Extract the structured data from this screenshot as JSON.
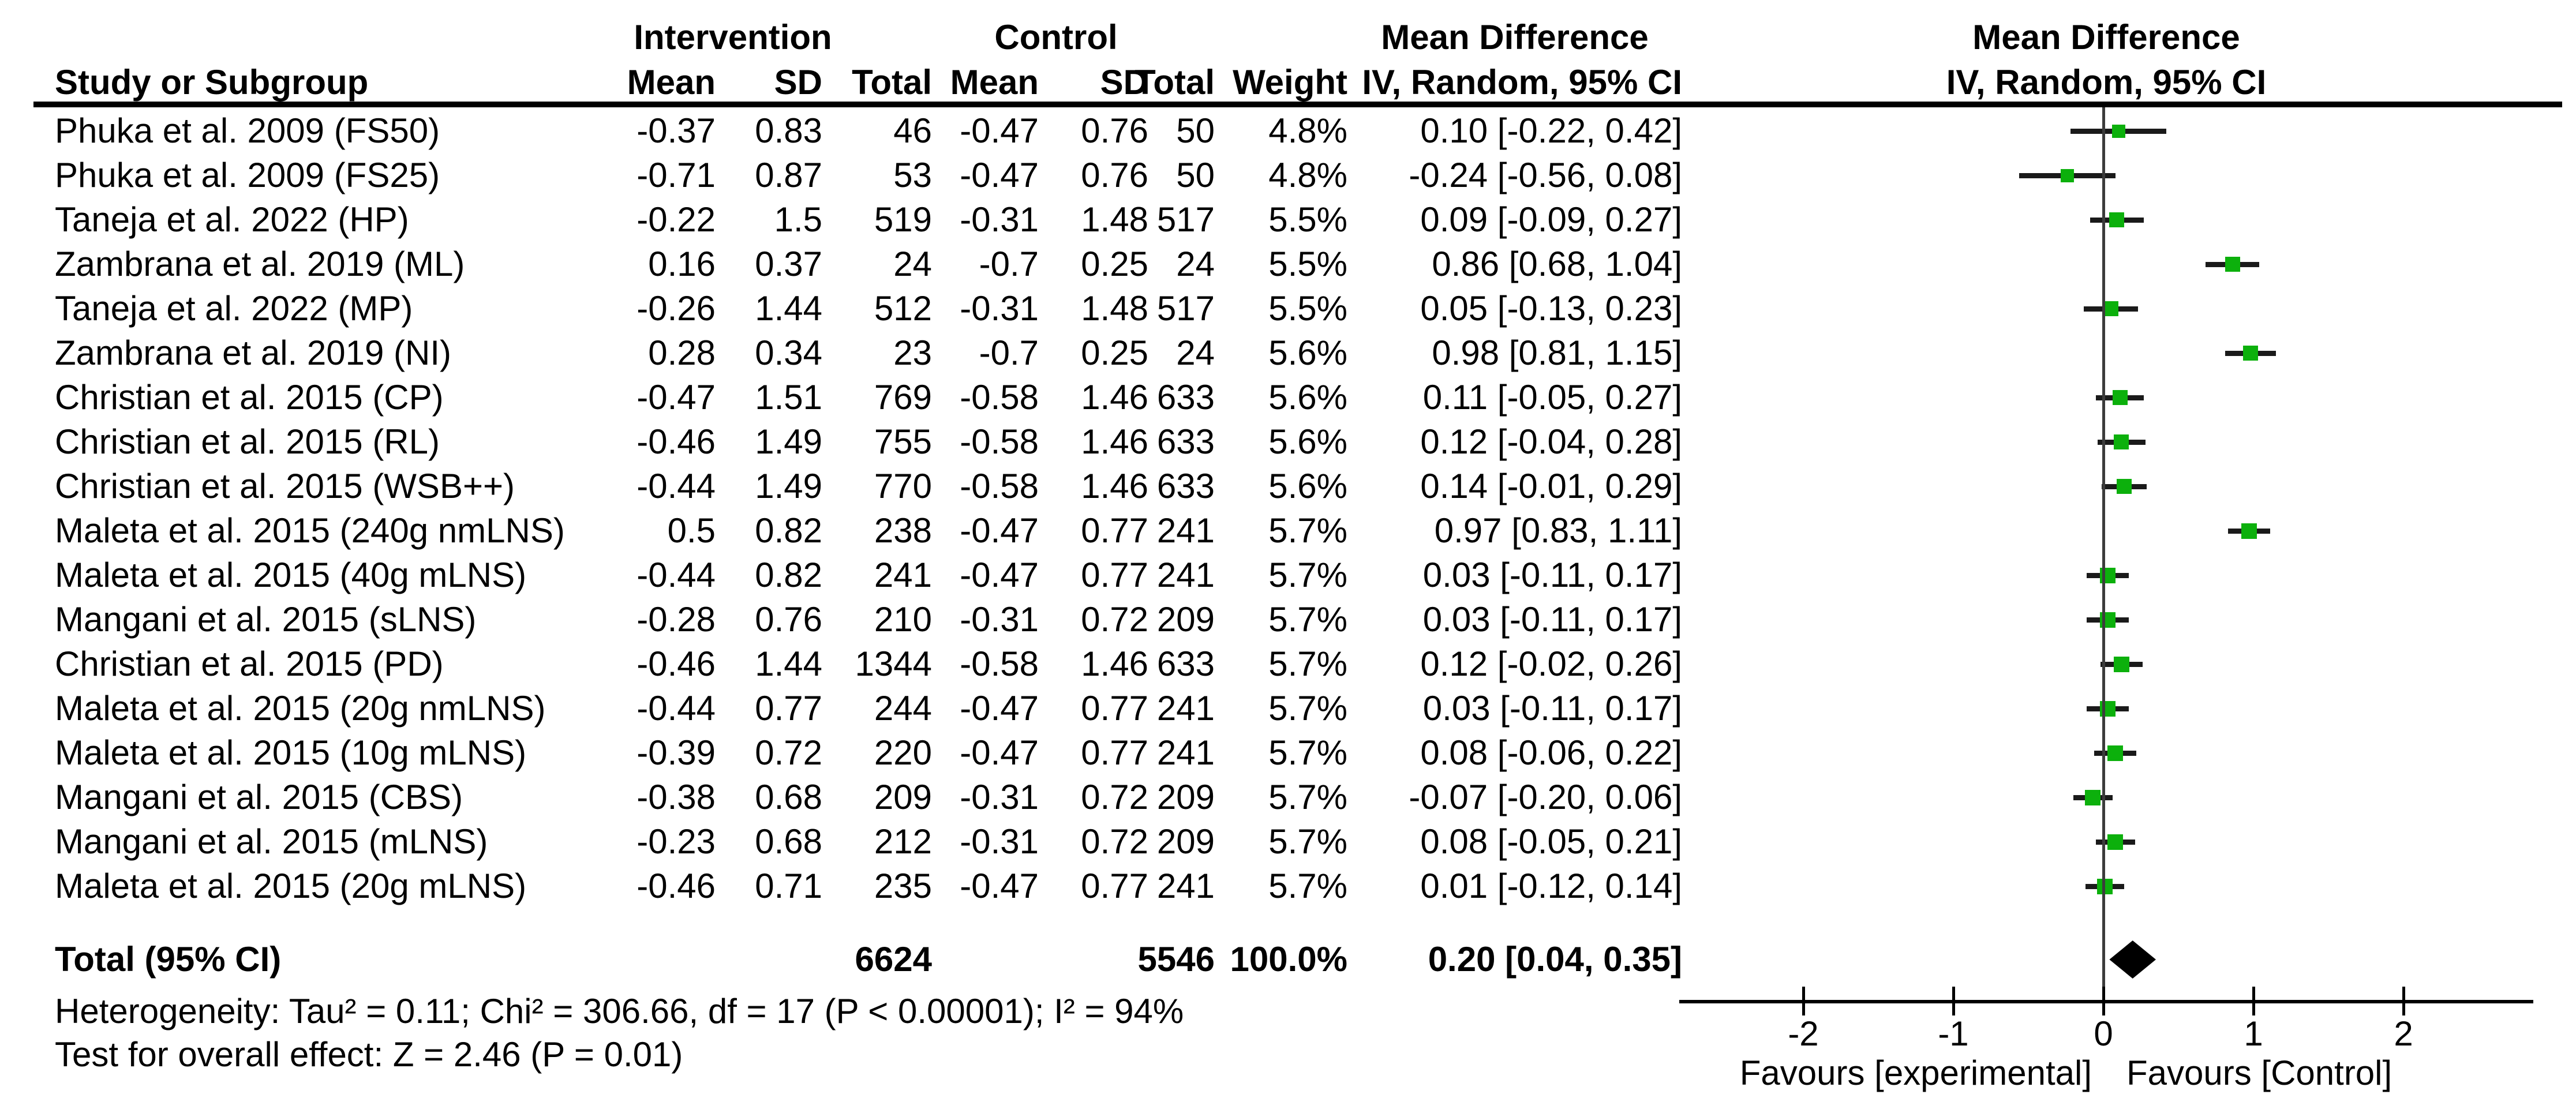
{
  "table": {
    "group_headers": {
      "intervention": "Intervention",
      "control": "Control",
      "mean_difference": "Mean Difference"
    },
    "column_headers": {
      "study": "Study or Subgroup",
      "mean1": "Mean",
      "sd1": "SD",
      "total1": "Total",
      "mean2": "Mean",
      "sd2": "SD",
      "total2": "Total",
      "weight": "Weight",
      "ci": "IV, Random, 95% CI"
    }
  },
  "plot_header": {
    "line1": "Mean Difference",
    "line2": "IV, Random, 95% CI"
  },
  "footer": {
    "heterogeneity": "Heterogeneity: Tau² = 0.11; Chi² = 306.66, df = 17 (P < 0.00001); I² = 94%",
    "overall_effect": "Test for overall effect: Z = 2.46 (P = 0.01)"
  },
  "chart_data": {
    "type": "scatter",
    "subtype": "forest-plot",
    "effect_measure": "Mean Difference IV, Random, 95% CI",
    "studies": [
      {
        "name": "Phuka et al. 2009 (FS50)",
        "i_mean": "-0.37",
        "i_sd": "0.83",
        "i_total": "46",
        "c_mean": "-0.47",
        "c_sd": "0.76",
        "c_total": "50",
        "weight": "4.8%",
        "ci_label": "0.10 [-0.22, 0.42]",
        "md": 0.1,
        "lo": -0.22,
        "hi": 0.42
      },
      {
        "name": "Phuka et al. 2009 (FS25)",
        "i_mean": "-0.71",
        "i_sd": "0.87",
        "i_total": "53",
        "c_mean": "-0.47",
        "c_sd": "0.76",
        "c_total": "50",
        "weight": "4.8%",
        "ci_label": "-0.24 [-0.56, 0.08]",
        "md": -0.24,
        "lo": -0.56,
        "hi": 0.08
      },
      {
        "name": "Taneja et al. 2022 (HP)",
        "i_mean": "-0.22",
        "i_sd": "1.5",
        "i_total": "519",
        "c_mean": "-0.31",
        "c_sd": "1.48",
        "c_total": "517",
        "weight": "5.5%",
        "ci_label": "0.09 [-0.09, 0.27]",
        "md": 0.09,
        "lo": -0.09,
        "hi": 0.27
      },
      {
        "name": "Zambrana et al. 2019 (ML)",
        "i_mean": "0.16",
        "i_sd": "0.37",
        "i_total": "24",
        "c_mean": "-0.7",
        "c_sd": "0.25",
        "c_total": "24",
        "weight": "5.5%",
        "ci_label": "0.86 [0.68, 1.04]",
        "md": 0.86,
        "lo": 0.68,
        "hi": 1.04
      },
      {
        "name": "Taneja et al. 2022 (MP)",
        "i_mean": "-0.26",
        "i_sd": "1.44",
        "i_total": "512",
        "c_mean": "-0.31",
        "c_sd": "1.48",
        "c_total": "517",
        "weight": "5.5%",
        "ci_label": "0.05 [-0.13, 0.23]",
        "md": 0.05,
        "lo": -0.13,
        "hi": 0.23
      },
      {
        "name": "Zambrana et al. 2019 (NI)",
        "i_mean": "0.28",
        "i_sd": "0.34",
        "i_total": "23",
        "c_mean": "-0.7",
        "c_sd": "0.25",
        "c_total": "24",
        "weight": "5.6%",
        "ci_label": "0.98 [0.81, 1.15]",
        "md": 0.98,
        "lo": 0.81,
        "hi": 1.15
      },
      {
        "name": "Christian et al. 2015 (CP)",
        "i_mean": "-0.47",
        "i_sd": "1.51",
        "i_total": "769",
        "c_mean": "-0.58",
        "c_sd": "1.46",
        "c_total": "633",
        "weight": "5.6%",
        "ci_label": "0.11 [-0.05, 0.27]",
        "md": 0.11,
        "lo": -0.05,
        "hi": 0.27
      },
      {
        "name": "Christian et al. 2015 (RL)",
        "i_mean": "-0.46",
        "i_sd": "1.49",
        "i_total": "755",
        "c_mean": "-0.58",
        "c_sd": "1.46",
        "c_total": "633",
        "weight": "5.6%",
        "ci_label": "0.12 [-0.04, 0.28]",
        "md": 0.12,
        "lo": -0.04,
        "hi": 0.28
      },
      {
        "name": "Christian et al. 2015 (WSB++)",
        "i_mean": "-0.44",
        "i_sd": "1.49",
        "i_total": "770",
        "c_mean": "-0.58",
        "c_sd": "1.46",
        "c_total": "633",
        "weight": "5.6%",
        "ci_label": "0.14 [-0.01, 0.29]",
        "md": 0.14,
        "lo": -0.01,
        "hi": 0.29
      },
      {
        "name": "Maleta et al. 2015 (240g nmLNS)",
        "i_mean": "0.5",
        "i_sd": "0.82",
        "i_total": "238",
        "c_mean": "-0.47",
        "c_sd": "0.77",
        "c_total": "241",
        "weight": "5.7%",
        "ci_label": "0.97 [0.83, 1.11]",
        "md": 0.97,
        "lo": 0.83,
        "hi": 1.11
      },
      {
        "name": "Maleta et al. 2015 (40g mLNS)",
        "i_mean": "-0.44",
        "i_sd": "0.82",
        "i_total": "241",
        "c_mean": "-0.47",
        "c_sd": "0.77",
        "c_total": "241",
        "weight": "5.7%",
        "ci_label": "0.03 [-0.11, 0.17]",
        "md": 0.03,
        "lo": -0.11,
        "hi": 0.17
      },
      {
        "name": "Mangani et al. 2015 (sLNS)",
        "i_mean": "-0.28",
        "i_sd": "0.76",
        "i_total": "210",
        "c_mean": "-0.31",
        "c_sd": "0.72",
        "c_total": "209",
        "weight": "5.7%",
        "ci_label": "0.03 [-0.11, 0.17]",
        "md": 0.03,
        "lo": -0.11,
        "hi": 0.17
      },
      {
        "name": "Christian et al. 2015 (PD)",
        "i_mean": "-0.46",
        "i_sd": "1.44",
        "i_total": "1344",
        "c_mean": "-0.58",
        "c_sd": "1.46",
        "c_total": "633",
        "weight": "5.7%",
        "ci_label": "0.12 [-0.02, 0.26]",
        "md": 0.12,
        "lo": -0.02,
        "hi": 0.26
      },
      {
        "name": "Maleta et al. 2015 (20g nmLNS)",
        "i_mean": "-0.44",
        "i_sd": "0.77",
        "i_total": "244",
        "c_mean": "-0.47",
        "c_sd": "0.77",
        "c_total": "241",
        "weight": "5.7%",
        "ci_label": "0.03 [-0.11, 0.17]",
        "md": 0.03,
        "lo": -0.11,
        "hi": 0.17
      },
      {
        "name": "Maleta et al. 2015 (10g mLNS)",
        "i_mean": "-0.39",
        "i_sd": "0.72",
        "i_total": "220",
        "c_mean": "-0.47",
        "c_sd": "0.77",
        "c_total": "241",
        "weight": "5.7%",
        "ci_label": "0.08 [-0.06, 0.22]",
        "md": 0.08,
        "lo": -0.06,
        "hi": 0.22
      },
      {
        "name": "Mangani et al. 2015 (CBS)",
        "i_mean": "-0.38",
        "i_sd": "0.68",
        "i_total": "209",
        "c_mean": "-0.31",
        "c_sd": "0.72",
        "c_total": "209",
        "weight": "5.7%",
        "ci_label": "-0.07 [-0.20, 0.06]",
        "md": -0.07,
        "lo": -0.2,
        "hi": 0.06
      },
      {
        "name": "Mangani et al. 2015 (mLNS)",
        "i_mean": "-0.23",
        "i_sd": "0.68",
        "i_total": "212",
        "c_mean": "-0.31",
        "c_sd": "0.72",
        "c_total": "209",
        "weight": "5.7%",
        "ci_label": "0.08 [-0.05, 0.21]",
        "md": 0.08,
        "lo": -0.05,
        "hi": 0.21
      },
      {
        "name": "Maleta et al. 2015 (20g mLNS)",
        "i_mean": "-0.46",
        "i_sd": "0.71",
        "i_total": "235",
        "c_mean": "-0.47",
        "c_sd": "0.77",
        "c_total": "241",
        "weight": "5.7%",
        "ci_label": "0.01 [-0.12, 0.14]",
        "md": 0.01,
        "lo": -0.12,
        "hi": 0.14
      }
    ],
    "total": {
      "label": "Total (95% CI)",
      "i_total": "6624",
      "c_total": "5546",
      "weight": "100.0%",
      "ci_label": "0.20 [0.04, 0.35]",
      "md": 0.2,
      "lo": 0.04,
      "hi": 0.35
    },
    "axis": {
      "ticks": [
        "-2",
        "-1",
        "0",
        "1",
        "2"
      ],
      "tick_values": [
        -2,
        -1,
        0,
        1,
        2
      ],
      "xlim": [
        -2.85,
        2.85
      ],
      "favours_left": "Favours [experimental]",
      "favours_right": "Favours [Control]"
    },
    "colors": {
      "marker": "#0cb00c",
      "diamond": "#000000",
      "ci_line": "#1a1a1a",
      "zero_line": "#3c3c3c",
      "axis": "#000000"
    }
  }
}
